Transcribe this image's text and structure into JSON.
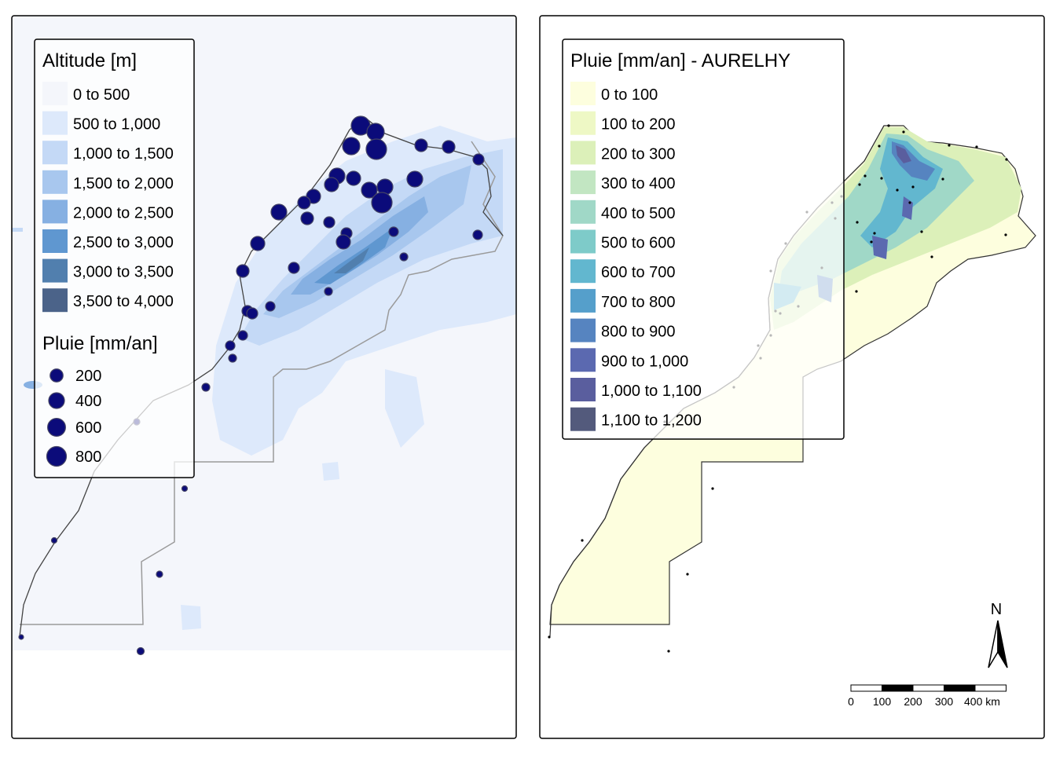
{
  "left_map": {
    "altitude_legend": {
      "title": "Altitude [m]",
      "classes": [
        {
          "label": "0 to 500",
          "color": "#f4f6fb"
        },
        {
          "label": "500 to 1,000",
          "color": "#dde9fb"
        },
        {
          "label": "1,000 to 1,500",
          "color": "#c4d9f6"
        },
        {
          "label": "1,500 to 2,000",
          "color": "#a8c7ee"
        },
        {
          "label": "2,000 to 2,500",
          "color": "#86b0e2"
        },
        {
          "label": "2,500 to 3,000",
          "color": "#5f97d0"
        },
        {
          "label": "3,000 to 3,500",
          "color": "#517fae"
        },
        {
          "label": "3,500 to 4,000",
          "color": "#4b6389"
        }
      ]
    },
    "rain_legend": {
      "title": "Pluie [mm/an]",
      "marker_color": "#0b0b7a",
      "sizes": [
        {
          "label": "200",
          "value": 200
        },
        {
          "label": "400",
          "value": 400
        },
        {
          "label": "600",
          "value": 600
        },
        {
          "label": "800",
          "value": 800
        }
      ]
    }
  },
  "right_map": {
    "rain_legend": {
      "title": "Pluie [mm/an] - AURELHY",
      "classes": [
        {
          "label": "0 to 100",
          "color": "#fdfede"
        },
        {
          "label": "100 to 200",
          "color": "#eef8c5"
        },
        {
          "label": "200 to 300",
          "color": "#dcf0b9"
        },
        {
          "label": "300 to 400",
          "color": "#c2e6c2"
        },
        {
          "label": "400 to 500",
          "color": "#a0d8c7"
        },
        {
          "label": "500 to 600",
          "color": "#7ecbc9"
        },
        {
          "label": "600 to 700",
          "color": "#62b7cf"
        },
        {
          "label": "700 to 800",
          "color": "#559fcb"
        },
        {
          "label": "800 to 900",
          "color": "#5684c0"
        },
        {
          "label": "900 to 1,000",
          "color": "#5b69b0"
        },
        {
          "label": "1,000 to 1,100",
          "color": "#5a5e9e"
        },
        {
          "label": "1,100 to 1,200",
          "color": "#535a7c"
        }
      ]
    },
    "north_arrow": {
      "label": "N"
    },
    "scale_bar": {
      "labels": [
        "0",
        "100",
        "200",
        "300",
        "400 km"
      ]
    }
  },
  "colors": {
    "border": "#000000",
    "frontier": "#9a9a9a",
    "coast": "#333333"
  }
}
